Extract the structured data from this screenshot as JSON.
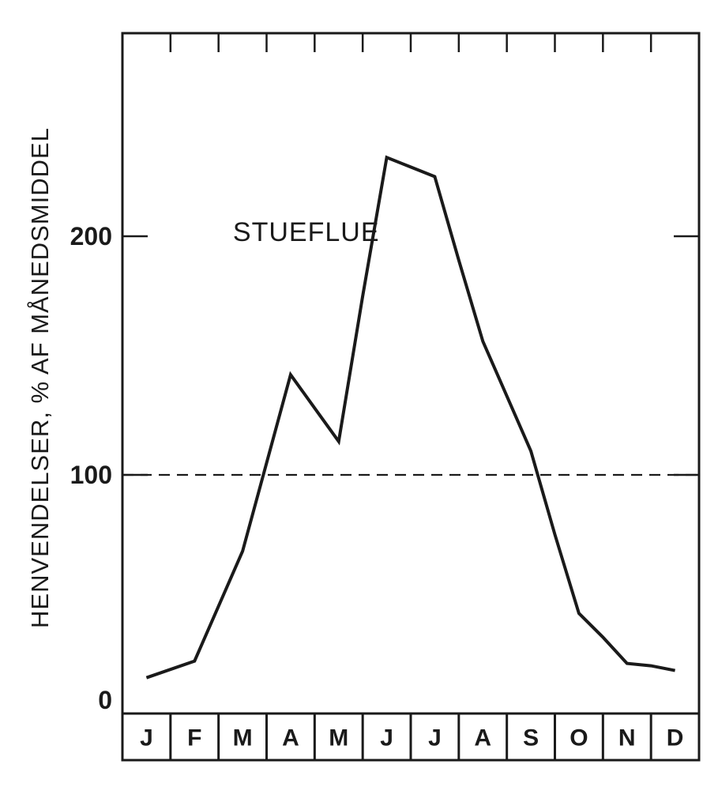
{
  "chart_data": {
    "type": "line",
    "title": "",
    "xlabel": "",
    "ylabel": "HENVENDELSER, % AF MÅNEDSMIDDEL",
    "categories": [
      "J",
      "F",
      "M",
      "A",
      "M",
      "J",
      "J",
      "A",
      "S",
      "O",
      "N",
      "D"
    ],
    "x": [
      0.5,
      1.5,
      2.5,
      3.5,
      4,
      4.5,
      5,
      5.5,
      6,
      6.5,
      7,
      7.5,
      8,
      8.5,
      9,
      9.5,
      10,
      10.5,
      11,
      11.5
    ],
    "series": [
      {
        "name": "STUEFLUE",
        "values": [
          15,
          22,
          68,
          142,
          128,
          114,
          175,
          233,
          229,
          225,
          190,
          156,
          133,
          110,
          75,
          42,
          32,
          21,
          20,
          18
        ]
      }
    ],
    "reference_line": {
      "value": 100,
      "style": "dashed"
    },
    "yticks": [
      0,
      100,
      200
    ],
    "ylim": [
      0,
      288
    ],
    "xlim": [
      0,
      12
    ],
    "grid": false,
    "annotations": [
      {
        "text": "STUEFLUE",
        "x": 2.3,
        "y": 202
      }
    ]
  }
}
